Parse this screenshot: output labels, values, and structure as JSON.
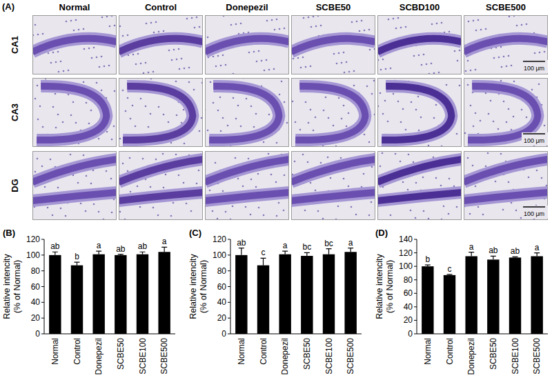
{
  "panel_a": {
    "label": "(A)",
    "columns": [
      "Normal",
      "Control",
      "Donepezil",
      "SCBE50",
      "SCBD100",
      "SCBE500"
    ],
    "rows": [
      "CA1",
      "CA3",
      "DG"
    ],
    "scale_bar": "100 μm"
  },
  "chart_data": [
    {
      "type": "bar",
      "panel_label": "(B)",
      "y_label": "Relative intencity (% of Normal)",
      "categories": [
        "Normal",
        "Control",
        "Donepezil",
        "SCBE50",
        "SCBE100",
        "SCBE500"
      ],
      "values": [
        100,
        87,
        101,
        100,
        101,
        104
      ],
      "errors": [
        4,
        4,
        4,
        1,
        3,
        6
      ],
      "annotations": [
        "ab",
        "b",
        "a",
        "ab",
        "ab",
        "a"
      ],
      "color": "#000000",
      "ylim": [
        0,
        120
      ],
      "yticks": [
        0,
        20,
        40,
        60,
        80,
        100,
        120
      ]
    },
    {
      "type": "bar",
      "panel_label": "(C)",
      "y_label": "Relative intencity (% of Normal)",
      "categories": [
        "Normal",
        "Control",
        "Donepezil",
        "SCBE50",
        "SCBE100",
        "SCBE500"
      ],
      "values": [
        100,
        87,
        101,
        99,
        101,
        104
      ],
      "errors": [
        9,
        9,
        4,
        4,
        7,
        5
      ],
      "annotations": [
        "ab",
        "c",
        "a",
        "bc",
        "bc",
        "a"
      ],
      "color": "#000000",
      "ylim": [
        0,
        120
      ],
      "yticks": [
        0,
        20,
        40,
        60,
        80,
        100,
        120
      ]
    },
    {
      "type": "bar",
      "panel_label": "(D)",
      "y_label": "Relative intencity (% of Normal)",
      "categories": [
        "Normal",
        "Control",
        "Donepezil",
        "SCBE50",
        "SCBE100",
        "SCBE500"
      ],
      "values": [
        100,
        87,
        115,
        110,
        113,
        115
      ],
      "errors": [
        2,
        1,
        6,
        5,
        1,
        5
      ],
      "annotations": [
        "b",
        "c",
        "a",
        "ab",
        "ab",
        "a"
      ],
      "color": "#000000",
      "ylim": [
        0,
        140
      ],
      "yticks": [
        0,
        20,
        40,
        60,
        80,
        100,
        120,
        140
      ]
    }
  ]
}
